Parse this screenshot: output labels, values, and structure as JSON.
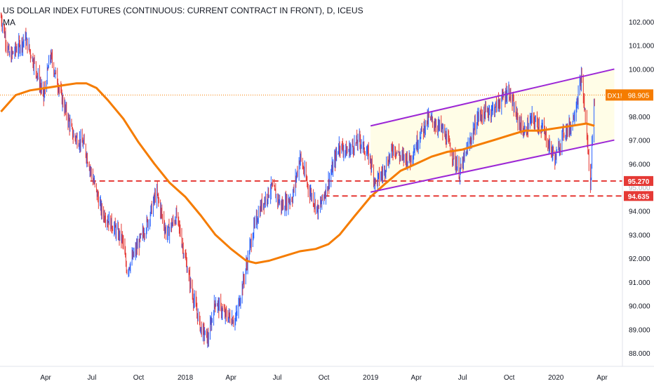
{
  "header": {
    "title": "US DOLLAR INDEX FUTURES (CONTINUOUS: CURRENT CONTRACT IN FRONT), D, ICEUS",
    "indicator": "MA"
  },
  "colors": {
    "bull": "#2962ff",
    "bear": "#e53935",
    "ma": "#f57c00",
    "channel": "#9c27d6",
    "channel_fill": "#fffde7",
    "support": "#e53935",
    "price_tag": "#f57c00",
    "last_price_line": "#f57c00",
    "axis_text": "#131722"
  },
  "chart_data": {
    "type": "candlestick",
    "ylim": [
      87.4,
      102.6
    ],
    "y_ticks": [
      "88.000",
      "89.000",
      "90.000",
      "91.000",
      "92.000",
      "93.000",
      "94.000",
      "95.000",
      "96.000",
      "97.000",
      "98.000",
      "99.000",
      "100.000",
      "101.000",
      "102.000"
    ],
    "x_ticks": [
      {
        "label": "Apr",
        "date": "2017-04"
      },
      {
        "label": "Jul",
        "date": "2017-07"
      },
      {
        "label": "Oct",
        "date": "2017-10"
      },
      {
        "label": "2018",
        "date": "2018-01"
      },
      {
        "label": "Apr",
        "date": "2018-04"
      },
      {
        "label": "Jul",
        "date": "2018-07"
      },
      {
        "label": "Oct",
        "date": "2018-10"
      },
      {
        "label": "2019",
        "date": "2019-01"
      },
      {
        "label": "Apr",
        "date": "2019-04"
      },
      {
        "label": "Jul",
        "date": "2019-07"
      },
      {
        "label": "Oct",
        "date": "2019-10"
      },
      {
        "label": "2020",
        "date": "2020-01"
      },
      {
        "label": "Apr",
        "date": "2020-04"
      }
    ],
    "price_path": [
      [
        "2017-01-03",
        102.2
      ],
      [
        "2017-01-20",
        100.5
      ],
      [
        "2017-02-20",
        101.3
      ],
      [
        "2017-03-10",
        100.2
      ],
      [
        "2017-03-28",
        98.8
      ],
      [
        "2017-04-10",
        100.6
      ],
      [
        "2017-05-05",
        98.6
      ],
      [
        "2017-05-25",
        97.2
      ],
      [
        "2017-06-15",
        96.8
      ],
      [
        "2017-06-30",
        95.6
      ],
      [
        "2017-07-20",
        94.0
      ],
      [
        "2017-08-10",
        93.4
      ],
      [
        "2017-08-30",
        92.8
      ],
      [
        "2017-09-08",
        91.5
      ],
      [
        "2017-09-25",
        92.3
      ],
      [
        "2017-10-20",
        93.6
      ],
      [
        "2017-11-05",
        94.8
      ],
      [
        "2017-11-25",
        93.0
      ],
      [
        "2017-12-15",
        93.8
      ],
      [
        "2017-12-30",
        92.2
      ],
      [
        "2018-01-15",
        90.5
      ],
      [
        "2018-02-01",
        89.0
      ],
      [
        "2018-02-15",
        88.6
      ],
      [
        "2018-03-01",
        90.2
      ],
      [
        "2018-03-20",
        89.6
      ],
      [
        "2018-04-10",
        89.4
      ],
      [
        "2018-04-25",
        91.0
      ],
      [
        "2018-05-15",
        93.2
      ],
      [
        "2018-05-30",
        94.2
      ],
      [
        "2018-06-20",
        95.0
      ],
      [
        "2018-07-10",
        94.2
      ],
      [
        "2018-07-31",
        94.6
      ],
      [
        "2018-08-15",
        96.3
      ],
      [
        "2018-08-31",
        95.0
      ],
      [
        "2018-09-20",
        94.0
      ],
      [
        "2018-10-10",
        95.2
      ],
      [
        "2018-10-31",
        96.8
      ],
      [
        "2018-11-15",
        96.5
      ],
      [
        "2018-12-10",
        97.0
      ],
      [
        "2018-12-31",
        96.2
      ],
      [
        "2019-01-10",
        95.2
      ],
      [
        "2019-01-25",
        95.6
      ],
      [
        "2019-02-15",
        96.7
      ],
      [
        "2019-03-01",
        96.3
      ],
      [
        "2019-03-20",
        96.2
      ],
      [
        "2019-04-10",
        97.3
      ],
      [
        "2019-04-25",
        97.9
      ],
      [
        "2019-05-20",
        97.5
      ],
      [
        "2019-06-05",
        96.8
      ],
      [
        "2019-06-25",
        95.6
      ],
      [
        "2019-07-15",
        96.9
      ],
      [
        "2019-08-01",
        98.0
      ],
      [
        "2019-08-20",
        98.2
      ],
      [
        "2019-09-05",
        98.4
      ],
      [
        "2019-09-30",
        99.1
      ],
      [
        "2019-10-15",
        98.0
      ],
      [
        "2019-10-31",
        97.3
      ],
      [
        "2019-11-15",
        97.9
      ],
      [
        "2019-12-05",
        97.5
      ],
      [
        "2019-12-20",
        96.7
      ],
      [
        "2019-12-31",
        96.2
      ],
      [
        "2020-01-15",
        97.3
      ],
      [
        "2020-01-31",
        97.6
      ],
      [
        "2020-02-10",
        98.5
      ],
      [
        "2020-02-20",
        99.6
      ],
      [
        "2020-02-28",
        98.0
      ],
      [
        "2020-03-06",
        96.0
      ],
      [
        "2020-03-09",
        94.9
      ],
      [
        "2020-03-12",
        96.8
      ],
      [
        "2020-03-17",
        98.9
      ]
    ],
    "moving_average": [
      [
        "2017-01-03",
        98.2
      ],
      [
        "2017-02-01",
        98.9
      ],
      [
        "2017-03-01",
        99.1
      ],
      [
        "2017-04-01",
        99.2
      ],
      [
        "2017-05-01",
        99.3
      ],
      [
        "2017-06-01",
        99.4
      ],
      [
        "2017-06-20",
        99.4
      ],
      [
        "2017-07-10",
        99.2
      ],
      [
        "2017-08-01",
        98.7
      ],
      [
        "2017-09-01",
        97.9
      ],
      [
        "2017-10-01",
        96.9
      ],
      [
        "2017-11-01",
        96.0
      ],
      [
        "2017-12-01",
        95.2
      ],
      [
        "2018-01-01",
        94.6
      ],
      [
        "2018-02-01",
        93.8
      ],
      [
        "2018-03-01",
        93.0
      ],
      [
        "2018-04-01",
        92.4
      ],
      [
        "2018-05-01",
        91.9
      ],
      [
        "2018-05-20",
        91.8
      ],
      [
        "2018-06-15",
        91.9
      ],
      [
        "2018-07-15",
        92.1
      ],
      [
        "2018-08-15",
        92.3
      ],
      [
        "2018-09-15",
        92.4
      ],
      [
        "2018-10-10",
        92.6
      ],
      [
        "2018-11-01",
        93.0
      ],
      [
        "2018-12-01",
        93.8
      ],
      [
        "2019-01-01",
        94.6
      ],
      [
        "2019-02-01",
        95.2
      ],
      [
        "2019-03-01",
        95.7
      ],
      [
        "2019-04-01",
        96.0
      ],
      [
        "2019-05-01",
        96.3
      ],
      [
        "2019-06-01",
        96.5
      ],
      [
        "2019-07-01",
        96.6
      ],
      [
        "2019-08-01",
        96.8
      ],
      [
        "2019-09-01",
        97.0
      ],
      [
        "2019-10-01",
        97.2
      ],
      [
        "2019-11-01",
        97.4
      ],
      [
        "2019-12-01",
        97.4
      ],
      [
        "2020-01-01",
        97.5
      ],
      [
        "2020-02-01",
        97.6
      ],
      [
        "2020-03-01",
        97.7
      ],
      [
        "2020-03-17",
        97.6
      ]
    ],
    "channel": {
      "upper": [
        [
          "2019-01-01",
          97.6
        ],
        [
          "2020-04-25",
          100.0
        ]
      ],
      "lower": [
        [
          "2019-01-01",
          94.8
        ],
        [
          "2020-04-25",
          97.0
        ]
      ],
      "fill_from": "2019-01-01"
    },
    "support_levels": [
      {
        "value": 95.27,
        "label": "95.270",
        "from": "2017-06-28"
      },
      {
        "value": 94.635,
        "label": "94.635",
        "from": "2018-10-01"
      }
    ],
    "last_price": {
      "value": 98.905,
      "label": "98.905",
      "symbol": "DX1!"
    },
    "partial_tick_label": "95.000"
  }
}
